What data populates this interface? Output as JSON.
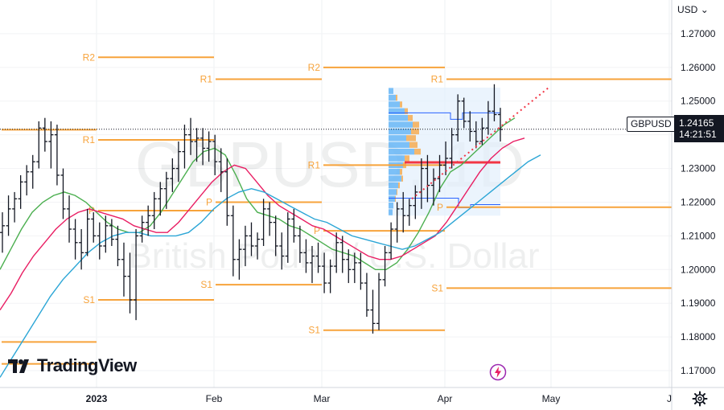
{
  "watermark": {
    "symbol": "GBPUSD, 1D",
    "description": "British Pound / U.S. Dollar"
  },
  "currency_label": "USD",
  "symbol_badge": "GBPUSD",
  "last_price": "1.24165",
  "countdown": "14:21:51",
  "brand": "TradingView",
  "colors": {
    "pivot": "#f7a33b",
    "ma_fast": "#4caf50",
    "ma_mid": "#e91e63",
    "ma_slow": "#2ca6d6",
    "candle": "#131722",
    "poc": "#f23645",
    "vp_up": "#2196f3",
    "vp_down": "#f7a33b",
    "vp_box": "#e3f0fc",
    "trend": "#f23645"
  },
  "chart_data": {
    "type": "line",
    "title": "GBPUSD, 1D",
    "subtitle": "British Pound / U.S. Dollar",
    "ylim": [
      1.165,
      1.28
    ],
    "y_ticks": [
      "1.27000",
      "1.26000",
      "1.25000",
      "1.24000",
      "1.23000",
      "1.22000",
      "1.21000",
      "1.20000",
      "1.19000",
      "1.18000",
      "1.17000"
    ],
    "x_ticks": [
      "2023",
      "Feb",
      "Mar",
      "Apr",
      "May",
      "J"
    ],
    "pivot_levels": [
      {
        "period": "Dec",
        "levels": [
          {
            "name": "",
            "value": 1.2415
          },
          {
            "name": "",
            "value": 1.1785
          },
          {
            "name": "",
            "value": 1.172
          }
        ]
      },
      {
        "period": "Jan",
        "levels": [
          {
            "name": "R2",
            "value": 1.263
          },
          {
            "name": "R1",
            "value": 1.2385
          },
          {
            "name": "P",
            "value": 1.2175
          },
          {
            "name": "S1",
            "value": 1.191
          }
        ]
      },
      {
        "period": "Feb",
        "levels": [
          {
            "name": "R1",
            "value": 1.2565
          },
          {
            "name": "P",
            "value": 1.22
          },
          {
            "name": "S1",
            "value": 1.1955
          }
        ]
      },
      {
        "period": "Mar",
        "levels": [
          {
            "name": "R2",
            "value": 1.26
          },
          {
            "name": "R1",
            "value": 1.231
          },
          {
            "name": "P",
            "value": 1.2115
          },
          {
            "name": "S1",
            "value": 1.182
          }
        ]
      },
      {
        "period": "Apr",
        "levels": [
          {
            "name": "R1",
            "value": 1.2565
          },
          {
            "name": "P",
            "value": 1.2185
          },
          {
            "name": "S1",
            "value": 1.1945
          }
        ]
      }
    ],
    "ohlc": [
      [
        1.211,
        1.217,
        1.205,
        1.213
      ],
      [
        1.213,
        1.222,
        1.21,
        1.218
      ],
      [
        1.218,
        1.223,
        1.214,
        1.221
      ],
      [
        1.221,
        1.228,
        1.218,
        1.226
      ],
      [
        1.226,
        1.231,
        1.222,
        1.229
      ],
      [
        1.229,
        1.234,
        1.224,
        1.232
      ],
      [
        1.232,
        1.244,
        1.23,
        1.242
      ],
      [
        1.242,
        1.245,
        1.235,
        1.238
      ],
      [
        1.238,
        1.244,
        1.23,
        1.24
      ],
      [
        1.24,
        1.243,
        1.225,
        1.228
      ],
      [
        1.228,
        1.23,
        1.215,
        1.218
      ],
      [
        1.218,
        1.222,
        1.208,
        1.212
      ],
      [
        1.212,
        1.215,
        1.203,
        1.208
      ],
      [
        1.208,
        1.212,
        1.2,
        1.205
      ],
      [
        1.205,
        1.218,
        1.204,
        1.215
      ],
      [
        1.215,
        1.217,
        1.208,
        1.21
      ],
      [
        1.21,
        1.214,
        1.203,
        1.207
      ],
      [
        1.207,
        1.216,
        1.205,
        1.213
      ],
      [
        1.213,
        1.215,
        1.207,
        1.209
      ],
      [
        1.209,
        1.213,
        1.201,
        1.203
      ],
      [
        1.203,
        1.208,
        1.192,
        1.198
      ],
      [
        1.198,
        1.205,
        1.187,
        1.191
      ],
      [
        1.191,
        1.212,
        1.185,
        1.21
      ],
      [
        1.21,
        1.216,
        1.208,
        1.214
      ],
      [
        1.214,
        1.219,
        1.21,
        1.216
      ],
      [
        1.216,
        1.223,
        1.212,
        1.221
      ],
      [
        1.221,
        1.226,
        1.216,
        1.224
      ],
      [
        1.224,
        1.229,
        1.218,
        1.227
      ],
      [
        1.227,
        1.233,
        1.223,
        1.23
      ],
      [
        1.23,
        1.238,
        1.226,
        1.235
      ],
      [
        1.235,
        1.243,
        1.23,
        1.24
      ],
      [
        1.24,
        1.245,
        1.234,
        1.238
      ],
      [
        1.238,
        1.242,
        1.232,
        1.239
      ],
      [
        1.239,
        1.242,
        1.231,
        1.236
      ],
      [
        1.236,
        1.241,
        1.232,
        1.238
      ],
      [
        1.238,
        1.24,
        1.228,
        1.232
      ],
      [
        1.232,
        1.236,
        1.223,
        1.229
      ],
      [
        1.229,
        1.233,
        1.213,
        1.216
      ],
      [
        1.216,
        1.219,
        1.198,
        1.203
      ],
      [
        1.203,
        1.209,
        1.197,
        1.206
      ],
      [
        1.206,
        1.213,
        1.201,
        1.21
      ],
      [
        1.21,
        1.214,
        1.204,
        1.207
      ],
      [
        1.207,
        1.211,
        1.203,
        1.209
      ],
      [
        1.209,
        1.221,
        1.207,
        1.218
      ],
      [
        1.218,
        1.22,
        1.21,
        1.214
      ],
      [
        1.214,
        1.216,
        1.204,
        1.207
      ],
      [
        1.207,
        1.211,
        1.2,
        1.204
      ],
      [
        1.204,
        1.217,
        1.202,
        1.215
      ],
      [
        1.215,
        1.218,
        1.208,
        1.21
      ],
      [
        1.21,
        1.213,
        1.202,
        1.205
      ],
      [
        1.205,
        1.209,
        1.199,
        1.202
      ],
      [
        1.202,
        1.207,
        1.196,
        1.204
      ],
      [
        1.204,
        1.208,
        1.199,
        1.201
      ],
      [
        1.201,
        1.205,
        1.193,
        1.196
      ],
      [
        1.196,
        1.203,
        1.193,
        1.201
      ],
      [
        1.201,
        1.211,
        1.199,
        1.208
      ],
      [
        1.208,
        1.21,
        1.199,
        1.203
      ],
      [
        1.203,
        1.206,
        1.196,
        1.2
      ],
      [
        1.2,
        1.205,
        1.196,
        1.202
      ],
      [
        1.202,
        1.205,
        1.194,
        1.196
      ],
      [
        1.196,
        1.199,
        1.186,
        1.188
      ],
      [
        1.188,
        1.194,
        1.181,
        1.184
      ],
      [
        1.184,
        1.199,
        1.182,
        1.197
      ],
      [
        1.197,
        1.207,
        1.195,
        1.205
      ],
      [
        1.205,
        1.214,
        1.203,
        1.212
      ],
      [
        1.212,
        1.22,
        1.208,
        1.218
      ],
      [
        1.218,
        1.223,
        1.211,
        1.216
      ],
      [
        1.216,
        1.221,
        1.213,
        1.219
      ],
      [
        1.219,
        1.225,
        1.215,
        1.223
      ],
      [
        1.223,
        1.233,
        1.218,
        1.23
      ],
      [
        1.23,
        1.234,
        1.22,
        1.225
      ],
      [
        1.225,
        1.23,
        1.219,
        1.227
      ],
      [
        1.227,
        1.234,
        1.223,
        1.231
      ],
      [
        1.231,
        1.238,
        1.228,
        1.233
      ],
      [
        1.233,
        1.242,
        1.23,
        1.24
      ],
      [
        1.24,
        1.252,
        1.238,
        1.25
      ],
      [
        1.25,
        1.251,
        1.242,
        1.244
      ],
      [
        1.244,
        1.247,
        1.238,
        1.241
      ],
      [
        1.241,
        1.244,
        1.236,
        1.238
      ],
      [
        1.238,
        1.245,
        1.237,
        1.242
      ],
      [
        1.242,
        1.25,
        1.24,
        1.247
      ],
      [
        1.247,
        1.255,
        1.244,
        1.246
      ],
      [
        1.246,
        1.248,
        1.238,
        1.2416
      ]
    ],
    "series": [
      {
        "values": [
          1.2,
          1.206,
          1.212,
          1.217,
          1.22,
          1.222,
          1.223,
          1.222,
          1.22,
          1.217,
          1.214,
          1.212,
          1.211,
          1.211,
          1.213,
          1.217,
          1.222,
          1.227,
          1.232,
          1.235,
          1.236,
          1.234,
          1.228,
          1.221,
          1.217,
          1.216,
          1.215,
          1.213,
          1.212,
          1.21,
          1.208,
          1.206,
          1.205,
          1.204,
          1.202,
          1.2,
          1.2,
          1.202,
          1.206,
          1.211,
          1.217,
          1.224,
          1.229,
          1.231,
          1.234,
          1.237,
          1.24,
          1.243,
          1.245
        ]
      },
      {
        "values": [
          1.188,
          1.193,
          1.199,
          1.204,
          1.208,
          1.212,
          1.215,
          1.217,
          1.218,
          1.217,
          1.216,
          1.215,
          1.213,
          1.212,
          1.211,
          1.211,
          1.214,
          1.218,
          1.222,
          1.226,
          1.229,
          1.231,
          1.23,
          1.226,
          1.222,
          1.219,
          1.217,
          1.215,
          1.213,
          1.212,
          1.21,
          1.208,
          1.206,
          1.204,
          1.203,
          1.203,
          1.204,
          1.206,
          1.208,
          1.21,
          1.214,
          1.219,
          1.224,
          1.229,
          1.233,
          1.236,
          1.238,
          1.239
        ]
      },
      {
        "values": [
          1.168,
          1.174,
          1.18,
          1.186,
          1.192,
          1.197,
          1.201,
          1.205,
          1.208,
          1.21,
          1.211,
          1.211,
          1.21,
          1.21,
          1.21,
          1.211,
          1.214,
          1.218,
          1.221,
          1.223,
          1.224,
          1.223,
          1.221,
          1.219,
          1.217,
          1.215,
          1.214,
          1.212,
          1.21,
          1.209,
          1.208,
          1.207,
          1.206,
          1.207,
          1.209,
          1.211,
          1.214,
          1.217,
          1.22,
          1.223,
          1.226,
          1.229,
          1.232,
          1.234
        ]
      }
    ],
    "volume_profile": {
      "range": [
        1.216,
        1.254
      ],
      "poc": 1.2318,
      "upper_bound": 1.2465,
      "lower_bound": 1.2212,
      "rows_up": [
        6,
        9,
        14,
        20,
        24,
        30,
        28,
        22,
        26,
        32,
        20,
        18,
        14,
        16,
        12,
        10,
        8,
        6,
        5
      ],
      "rows_down": [
        0,
        2,
        3,
        4,
        6,
        8,
        10,
        12,
        10,
        8,
        6,
        4,
        3,
        2,
        2,
        1,
        1,
        0,
        0
      ]
    }
  }
}
